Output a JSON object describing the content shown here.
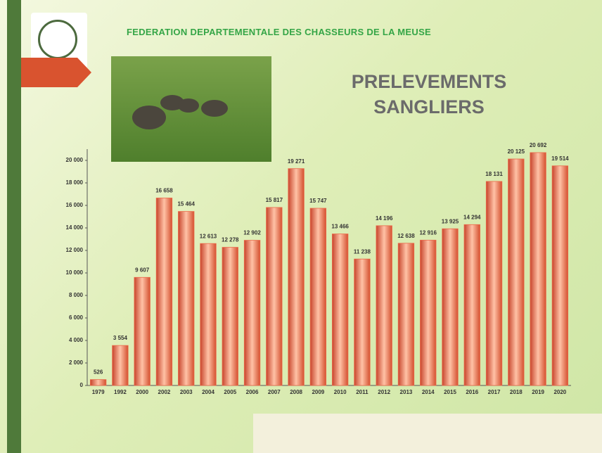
{
  "header": "FEDERATION DEPARTEMENTALE DES CHASSEURS DE LA MEUSE",
  "chart_data": {
    "type": "bar",
    "title": "PRELEVEMENTS SANGLIERS",
    "categories": [
      "1979",
      "1992",
      "2000",
      "2002",
      "2003",
      "2004",
      "2005",
      "2006",
      "2007",
      "2008",
      "2009",
      "2010",
      "2011",
      "2012",
      "2013",
      "2014",
      "2015",
      "2016",
      "2017",
      "2018",
      "2019",
      "2020"
    ],
    "values": [
      526,
      3554,
      9607,
      16658,
      15464,
      12613,
      12278,
      12902,
      15817,
      19271,
      15747,
      13466,
      11238,
      14196,
      12638,
      12916,
      13925,
      14294,
      18131,
      20125,
      20692,
      19514
    ],
    "value_labels": [
      "526",
      "3 554",
      "9 607",
      "16 658",
      "15 464",
      "12 613",
      "12 278",
      "12 902",
      "15 817",
      "19 271",
      "15 747",
      "13 466",
      "11 238",
      "14 196",
      "12 638",
      "12 916",
      "13 925",
      "14 294",
      "18 131",
      "20 125",
      "20 692",
      "19 514"
    ],
    "color": "#ec6a4c",
    "ylim": [
      0,
      21000
    ],
    "yticks": [
      0,
      {
        "value": 2000,
        "label": "2 000"
      },
      {
        "value": 4000,
        "label": "4 000"
      },
      {
        "value": 6000,
        "label": "6 000"
      },
      {
        "value": 8000,
        "label": "8 000"
      },
      {
        "value": 10000,
        "label": "10 000"
      },
      {
        "value": 12000,
        "label": "12 000"
      },
      {
        "value": 14000,
        "label": "14 000"
      },
      {
        "value": 16000,
        "label": "16 000"
      },
      {
        "value": 18000,
        "label": "18 000"
      },
      {
        "value": 20000,
        "label": "20 000"
      }
    ],
    "grid": false
  }
}
